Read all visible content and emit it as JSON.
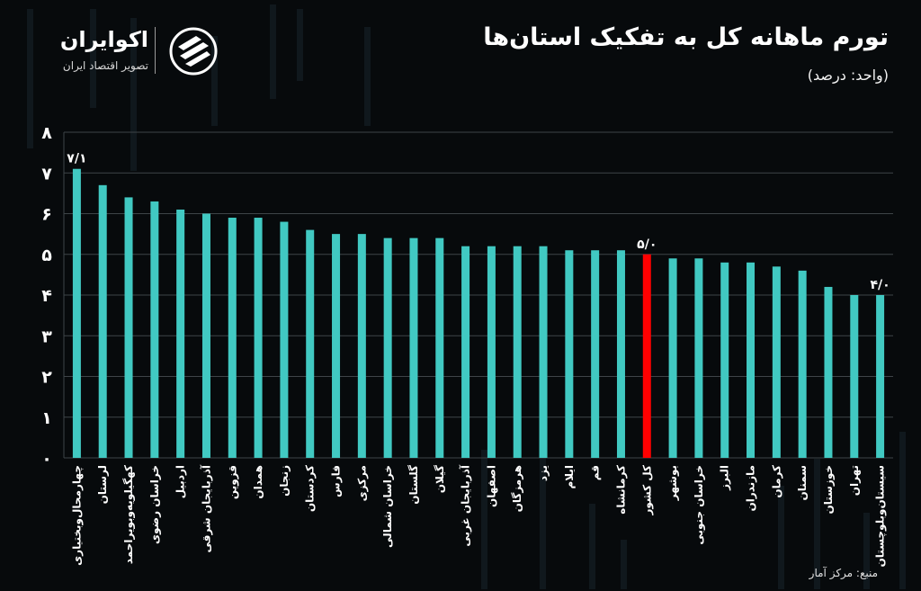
{
  "header": {
    "title": "تورم ماهانه کل به تفکیک استان‌ها",
    "unit": "(واحد: درصد)"
  },
  "logo": {
    "name": "اکوایران",
    "tagline": "تصویر اقتصاد ایران"
  },
  "footer": {
    "source": "منبع: مرکز آمار"
  },
  "colors": {
    "bar": "#41c9c2",
    "highlight": "#ff0000",
    "background": "#070a0c",
    "grid": "#3e4448"
  },
  "chart_data": {
    "type": "bar",
    "title": "تورم ماهانه کل به تفکیک استان‌ها",
    "xlabel": "",
    "ylabel": "",
    "ylim": [
      0,
      8
    ],
    "yticks": [
      0,
      1,
      2,
      3,
      4,
      5,
      6,
      7,
      8
    ],
    "ytick_labels": [
      "۰",
      "۱",
      "۲",
      "۳",
      "۴",
      "۵",
      "۶",
      "۷",
      "۸"
    ],
    "grid": true,
    "highlight_category": "کل کشور",
    "categories": [
      "چهارمحال‌وبختیاری",
      "لرستان",
      "کهگیلویه‌وبویراحمد",
      "خراسان رضوی",
      "اردبیل",
      "آذربایجان شرقی",
      "قزوین",
      "همدان",
      "زنجان",
      "کردستان",
      "فارس",
      "مرکزی",
      "خراسان شمالی",
      "گلستان",
      "گیلان",
      "آذربایجان غربی",
      "اصفهان",
      "هرمزگان",
      "یزد",
      "ایلام",
      "قم",
      "کرمانشاه",
      "کل کشور",
      "بوشهر",
      "خراسان جنوبی",
      "البرز",
      "مازندران",
      "کرمان",
      "سمنان",
      "خوزستان",
      "تهران",
      "سیستان‌وبلوچستان"
    ],
    "values": [
      7.1,
      6.7,
      6.4,
      6.3,
      6.1,
      6.0,
      5.9,
      5.9,
      5.8,
      5.6,
      5.5,
      5.5,
      5.4,
      5.4,
      5.4,
      5.2,
      5.2,
      5.2,
      5.2,
      5.1,
      5.1,
      5.1,
      5.0,
      4.9,
      4.9,
      4.8,
      4.8,
      4.7,
      4.6,
      4.2,
      4.0,
      4.0
    ],
    "data_labels": [
      {
        "category": "چهارمحال‌وبختیاری",
        "text": "۷/۱"
      },
      {
        "category": "کل کشور",
        "text": "۵/۰"
      },
      {
        "category": "سیستان‌وبلوچستان",
        "text": "۴/۰"
      }
    ]
  }
}
